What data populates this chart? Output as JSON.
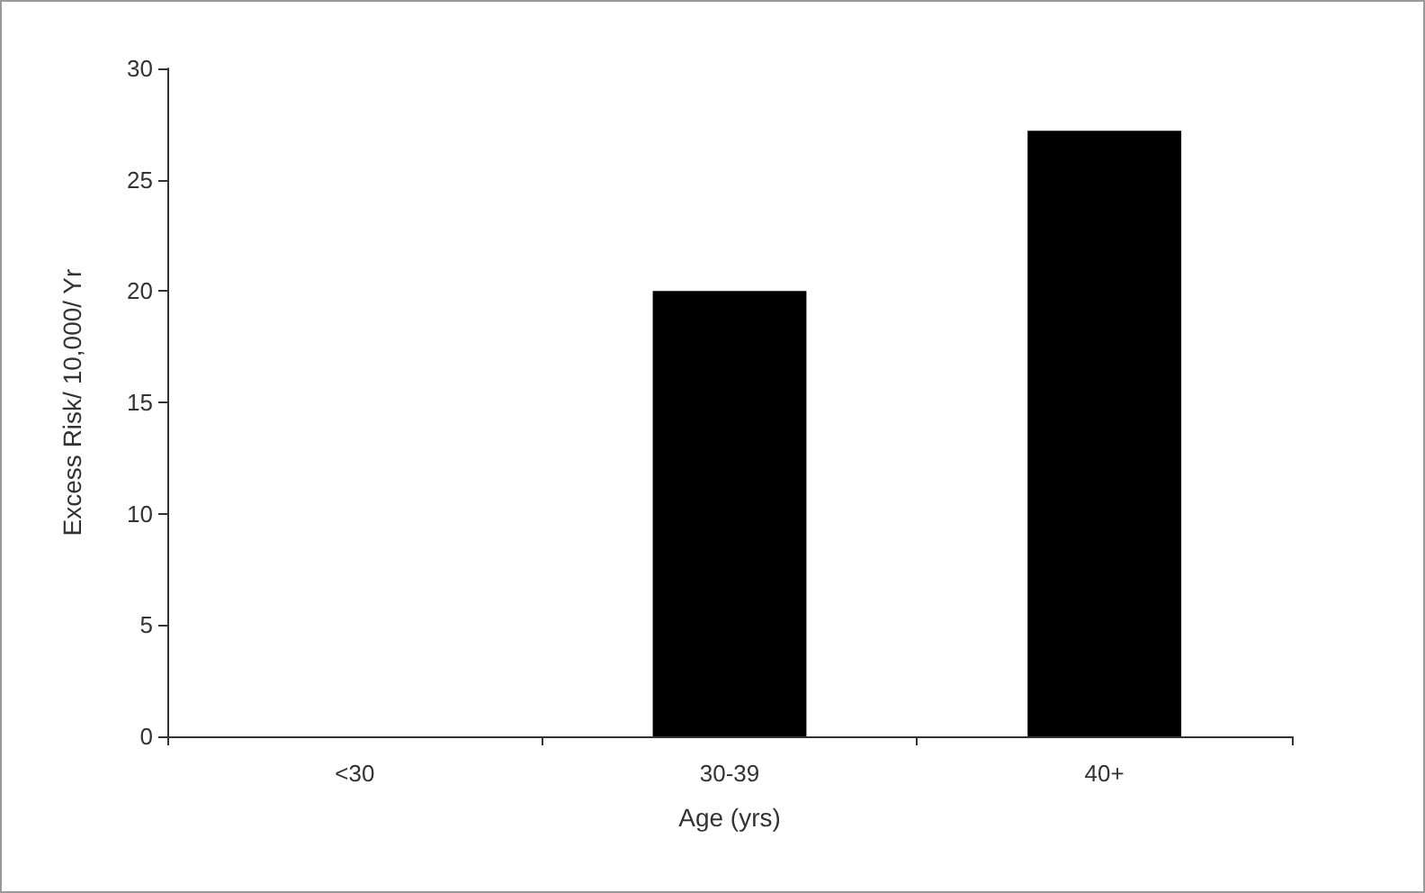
{
  "chart_data": {
    "type": "bar",
    "xlabel": "Age (yrs)",
    "ylabel": "Excess Risk/ 10,000/ Yr",
    "categories": [
      "<30",
      "30-39",
      "40+"
    ],
    "values": [
      0,
      20,
      27.2
    ],
    "color": "#000000",
    "ylim": [
      0,
      30
    ],
    "yticks": [
      0,
      5,
      10,
      15,
      20,
      25,
      30
    ],
    "grid": false
  }
}
